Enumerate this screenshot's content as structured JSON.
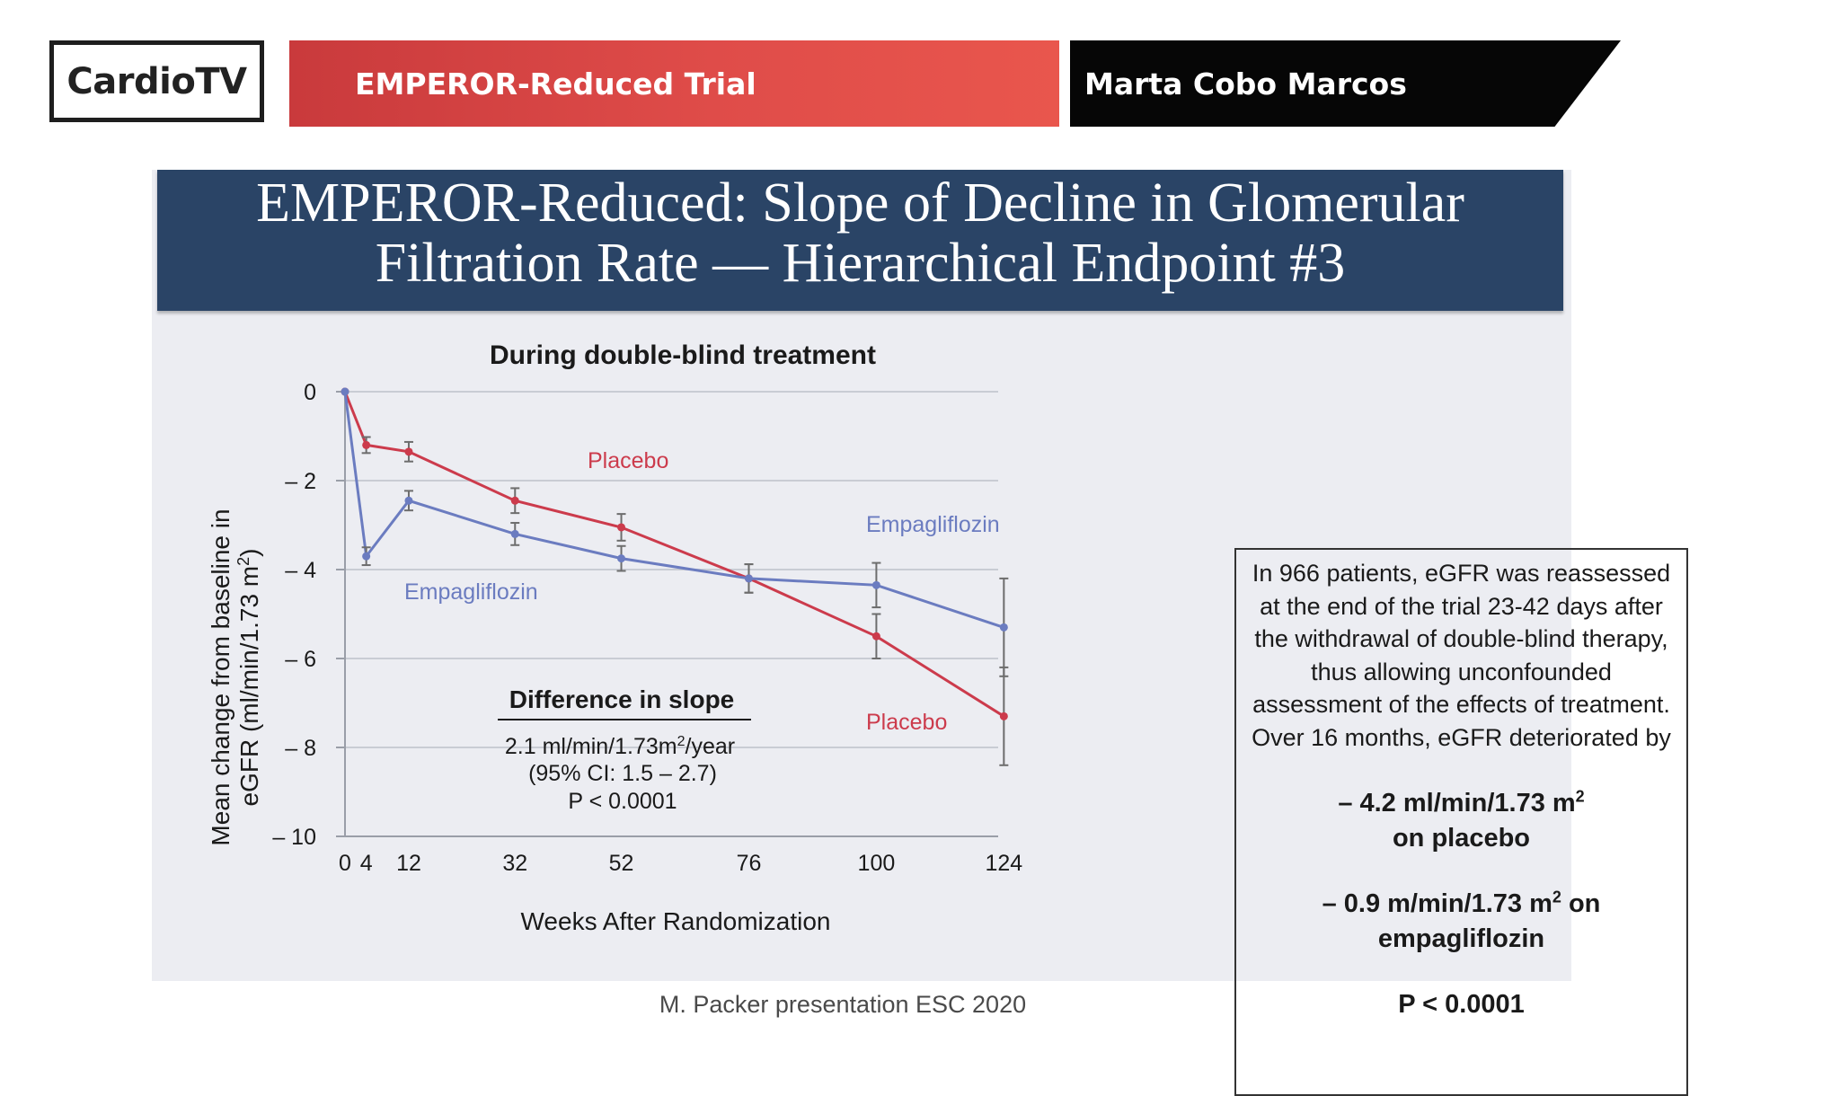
{
  "broadcast": {
    "logo": "CardioTV",
    "trial": "EMPEROR-Reduced Trial",
    "presenter": "Marta Cobo Marcos"
  },
  "slide": {
    "title_line1": "EMPEROR-Reduced: Slope of Decline in Glomerular",
    "title_line2": "Filtration Rate — Hierarchical Endpoint #3"
  },
  "info_box": {
    "paragraph": "In 966 patients, eGFR was reassessed at the end of the trial 23-42 days after the withdrawal of double-blind therapy, thus allowing unconfounded assessment of the effects of treatment.  Over 16 months, eGFR deteriorated by",
    "placebo_value": "– 4.2 ml/min/1.73 m",
    "placebo_sup": "2",
    "placebo_label": "on placebo",
    "empa_value": "– 0.9 m/min/1.73 m",
    "empa_sup": "2",
    "empa_suffix": " on",
    "empa_label": "empagliflozin",
    "p_value": "P < 0.0001"
  },
  "source": "M. Packer presentation ESC 2020",
  "colors": {
    "placebo": "#cc3b4c",
    "empagliflozin": "#6b7cc0",
    "header_bg": "#2a4466",
    "banner_red": "#dd4a48"
  },
  "chart_data": {
    "type": "line",
    "title": "During double-blind treatment",
    "xlabel": "Weeks After Randomization",
    "ylabel_line1": "Mean change from baseline in",
    "ylabel_line2": "eGFR (ml/min/1.73 m",
    "ylabel_sup": "2",
    "ylabel_close": ")",
    "x_ticks": [
      0,
      4,
      12,
      32,
      52,
      76,
      100,
      124
    ],
    "y_ticks": [
      0,
      -2,
      -4,
      -6,
      -8,
      -10
    ],
    "y_tick_labels": [
      "0",
      "– 2",
      "– 4",
      "– 6",
      "– 8",
      "– 10"
    ],
    "xlim": [
      0,
      128
    ],
    "ylim": [
      -10,
      0
    ],
    "grid": true,
    "series": [
      {
        "name": "Placebo",
        "color": "#cc3b4c",
        "x": [
          0,
          4,
          12,
          32,
          52,
          76,
          100,
          124
        ],
        "y": [
          0,
          -1.2,
          -1.35,
          -2.45,
          -3.05,
          -4.2,
          -5.5,
          -7.3
        ],
        "err": [
          0,
          0.18,
          0.22,
          0.28,
          0.3,
          0.32,
          0.5,
          1.1
        ],
        "labels": [
          "Placebo",
          "Placebo"
        ]
      },
      {
        "name": "Empagliflozin",
        "color": "#6b7cc0",
        "x": [
          0,
          4,
          12,
          32,
          52,
          76,
          100,
          124
        ],
        "y": [
          0,
          -3.7,
          -2.45,
          -3.2,
          -3.75,
          -4.2,
          -4.35,
          -5.3
        ],
        "err": [
          0,
          0.2,
          0.22,
          0.25,
          0.28,
          0.32,
          0.5,
          1.1
        ],
        "labels": [
          "Empagliflozin",
          "Empagliflozin"
        ]
      }
    ],
    "annotation": {
      "heading": "Difference in slope",
      "line1": "2.1 ml/min/1.73m",
      "line1_sup": "2",
      "line1_tail": "/year",
      "line2": "(95% CI: 1.5 – 2.7)",
      "line3": "P < 0.0001"
    }
  }
}
